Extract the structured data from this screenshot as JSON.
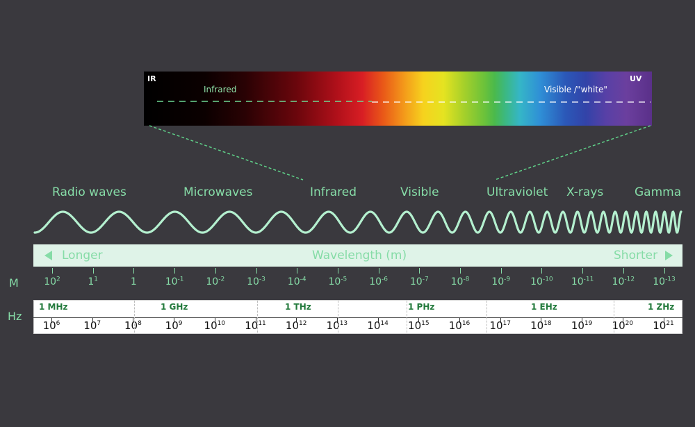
{
  "spectrum": {
    "ir_label": "IR",
    "uv_label": "UV",
    "infrared_label": "Infrared",
    "visible_label": "Visible /\"white\""
  },
  "bands": [
    "Radio waves",
    "Microwaves",
    "Infrared",
    "Visible",
    "Ultraviolet",
    "X-rays",
    "Gamma"
  ],
  "wavelength_bar": {
    "longer": "Longer",
    "title": "Wavelength (m)",
    "shorter": "Shorter"
  },
  "units": {
    "metre": "M",
    "hertz": "Hz"
  },
  "metre_scale": [
    {
      "base": "10",
      "exp": "2"
    },
    {
      "base": "1",
      "exp": "1"
    },
    {
      "base": "1",
      "exp": ""
    },
    {
      "base": "10",
      "exp": "-1"
    },
    {
      "base": "10",
      "exp": "-2"
    },
    {
      "base": "10",
      "exp": "-3"
    },
    {
      "base": "10",
      "exp": "-4"
    },
    {
      "base": "10",
      "exp": "-5"
    },
    {
      "base": "10",
      "exp": "-6"
    },
    {
      "base": "10",
      "exp": "-7"
    },
    {
      "base": "10",
      "exp": "-8"
    },
    {
      "base": "10",
      "exp": "-9"
    },
    {
      "base": "10",
      "exp": "-10"
    },
    {
      "base": "10",
      "exp": "-11"
    },
    {
      "base": "10",
      "exp": "-12"
    },
    {
      "base": "10",
      "exp": "-13"
    }
  ],
  "frequency_units": [
    "1 MHz",
    "1 GHz",
    "1 THz",
    "1 PHz",
    "1 EHz",
    "1 ZHz"
  ],
  "frequency_scale": [
    {
      "base": "10",
      "exp": "6"
    },
    {
      "base": "10",
      "exp": "7"
    },
    {
      "base": "10",
      "exp": "8"
    },
    {
      "base": "10",
      "exp": "9"
    },
    {
      "base": "10",
      "exp": "10"
    },
    {
      "base": "10",
      "exp": "11"
    },
    {
      "base": "10",
      "exp": "12"
    },
    {
      "base": "10",
      "exp": "13"
    },
    {
      "base": "10",
      "exp": "14"
    },
    {
      "base": "10",
      "exp": "15"
    },
    {
      "base": "10",
      "exp": "16"
    },
    {
      "base": "10",
      "exp": "17"
    },
    {
      "base": "10",
      "exp": "18"
    },
    {
      "base": "10",
      "exp": "19"
    },
    {
      "base": "10",
      "exp": "20"
    },
    {
      "base": "10",
      "exp": "21"
    }
  ],
  "colors": {
    "background": "#3a393e",
    "accent_green": "#86dca7",
    "wave_stroke": "#b4f0cf",
    "frequency_unit_text": "#237a3c"
  }
}
